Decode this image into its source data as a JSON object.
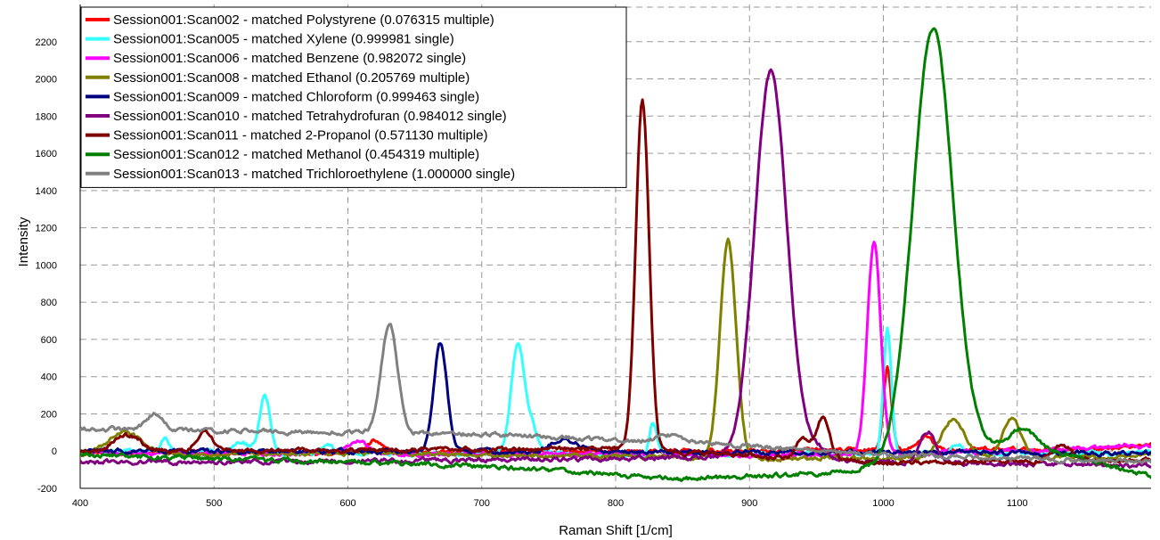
{
  "chart_data": {
    "type": "line",
    "xlabel": "Raman Shift [1/cm]",
    "ylabel": "Intensity",
    "xlim": [
      400,
      1200
    ],
    "ylim": [
      -200,
      2400
    ],
    "x_ticks": [
      400,
      500,
      600,
      700,
      800,
      900,
      1000,
      1100
    ],
    "y_ticks": [
      -200,
      0,
      200,
      400,
      600,
      800,
      1000,
      1200,
      1400,
      1600,
      1800,
      2000,
      2200
    ],
    "grid": true,
    "legend_position": "top-left",
    "series": [
      {
        "name": "Session001:Scan002 - matched Polystyrene (0.076315 multiple)",
        "color": "#ff0000",
        "baseline": [
          [
            400,
            -10
          ],
          [
            700,
            -5
          ],
          [
            900,
            0
          ],
          [
            1000,
            5
          ],
          [
            1150,
            10
          ],
          [
            1200,
            25
          ]
        ],
        "peaks": [
          [
            620,
            60,
            5
          ],
          [
            1003,
            440,
            3
          ],
          [
            1032,
            80,
            5
          ]
        ]
      },
      {
        "name": "Session001:Scan005 - matched Xylene (0.999981 single)",
        "color": "#33ffff",
        "baseline": [
          [
            400,
            0
          ],
          [
            800,
            -20
          ],
          [
            1200,
            -10
          ]
        ],
        "peaks": [
          [
            463,
            70,
            3
          ],
          [
            520,
            50,
            6
          ],
          [
            538,
            300,
            4
          ],
          [
            585,
            40,
            3
          ],
          [
            727,
            590,
            5
          ],
          [
            738,
            120,
            4
          ],
          [
            828,
            170,
            3
          ],
          [
            1003,
            670,
            3
          ],
          [
            1055,
            50,
            4
          ]
        ]
      },
      {
        "name": "Session001:Scan006 - matched Benzene (0.982072 single)",
        "color": "#ff00ff",
        "baseline": [
          [
            400,
            -10
          ],
          [
            900,
            -20
          ],
          [
            1000,
            -20
          ],
          [
            1200,
            20
          ]
        ],
        "peaks": [
          [
            608,
            80,
            7
          ],
          [
            993,
            1140,
            5
          ],
          [
            1180,
            20,
            5
          ]
        ]
      },
      {
        "name": "Session001:Scan008 - matched Ethanol (0.205769 multiple)",
        "color": "#808000",
        "baseline": [
          [
            400,
            -20
          ],
          [
            600,
            -10
          ],
          [
            900,
            -40
          ],
          [
            1200,
            -30
          ]
        ],
        "peaks": [
          [
            433,
            120,
            12
          ],
          [
            884,
            1170,
            6
          ],
          [
            1052,
            200,
            9
          ],
          [
            1096,
            200,
            7
          ]
        ]
      },
      {
        "name": "Session001:Scan009 - matched Chloroform (0.999463 single)",
        "color": "#000080",
        "baseline": [
          [
            400,
            0
          ],
          [
            1200,
            -10
          ]
        ],
        "peaks": [
          [
            669,
            580,
            5
          ],
          [
            762,
            70,
            10
          ]
        ]
      },
      {
        "name": "Session001:Scan010 - matched Tetrahydrofuran (0.984012 single)",
        "color": "#800080",
        "baseline": [
          [
            400,
            -60
          ],
          [
            700,
            -50
          ],
          [
            900,
            -30
          ],
          [
            1000,
            -60
          ],
          [
            1200,
            -80
          ]
        ],
        "peaks": [
          [
            916,
            2080,
            12
          ],
          [
            950,
            60,
            8
          ],
          [
            1033,
            170,
            6
          ]
        ]
      },
      {
        "name": "Session001:Scan011 - matched 2-Propanol (0.571130 multiple)",
        "color": "#800000",
        "baseline": [
          [
            400,
            0
          ],
          [
            800,
            10
          ],
          [
            1000,
            -60
          ],
          [
            1200,
            -50
          ]
        ],
        "peaks": [
          [
            435,
            80,
            10
          ],
          [
            493,
            100,
            6
          ],
          [
            820,
            1870,
            5
          ],
          [
            940,
            110,
            5
          ],
          [
            955,
            230,
            5
          ],
          [
            1133,
            90,
            7
          ]
        ]
      },
      {
        "name": "Session001:Scan012 - matched Methanol (0.454319 multiple)",
        "color": "#008000",
        "baseline": [
          [
            400,
            -20
          ],
          [
            700,
            -80
          ],
          [
            850,
            -150
          ],
          [
            950,
            -120
          ],
          [
            1050,
            -40
          ],
          [
            1100,
            50
          ],
          [
            1200,
            -140
          ]
        ],
        "peaks": [
          [
            1037,
            2320,
            15
          ],
          [
            1105,
            80,
            8
          ]
        ]
      },
      {
        "name": "Session001:Scan013 - matched Trichloroethylene (1.000000 single)",
        "color": "#808080",
        "baseline": [
          [
            400,
            120
          ],
          [
            600,
            100
          ],
          [
            700,
            90
          ],
          [
            800,
            60
          ],
          [
            900,
            30
          ],
          [
            1000,
            -20
          ],
          [
            1200,
            -60
          ]
        ],
        "peaks": [
          [
            456,
            90,
            6
          ],
          [
            631,
            590,
            6
          ],
          [
            840,
            40,
            8
          ]
        ]
      }
    ]
  }
}
